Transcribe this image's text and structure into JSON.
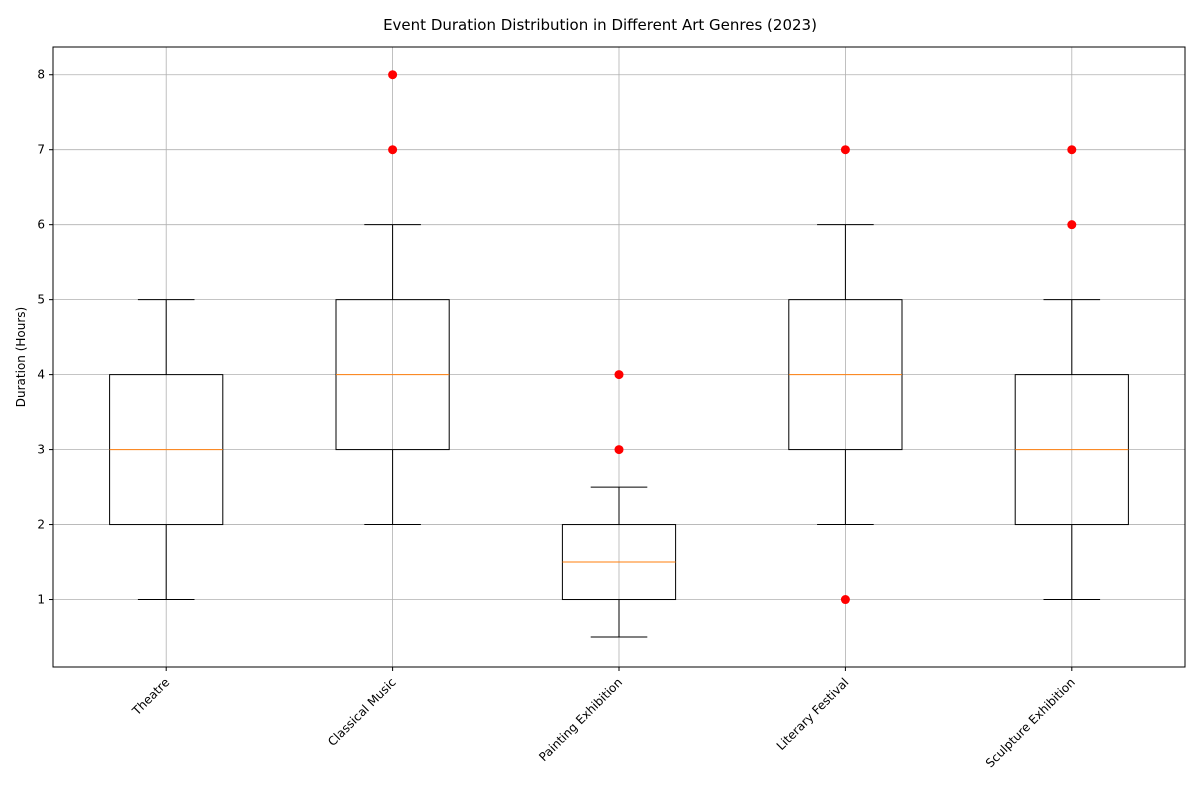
{
  "chart_data": {
    "type": "box",
    "title": "Event Duration Distribution in Different Art Genres (2023)",
    "xlabel": "",
    "ylabel": "Duration (Hours)",
    "ylim": [
      0.1,
      8.37
    ],
    "yticks": [
      1,
      2,
      3,
      4,
      5,
      6,
      7,
      8
    ],
    "grid": true,
    "colors": {
      "box": "#000000",
      "median": "#ff7f0e",
      "outlier": "#ff0000",
      "grid": "#b0b0b0"
    },
    "categories": [
      "Theatre",
      "Classical Music",
      "Painting Exhibition",
      "Literary Festival",
      "Sculpture Exhibition"
    ],
    "boxes": [
      {
        "category": "Theatre",
        "whisker_low": 1,
        "q1": 2,
        "median": 3,
        "q3": 4,
        "whisker_high": 5,
        "outliers": []
      },
      {
        "category": "Classical Music",
        "whisker_low": 2,
        "q1": 3,
        "median": 4,
        "q3": 5,
        "whisker_high": 6,
        "outliers": [
          7,
          8
        ]
      },
      {
        "category": "Painting Exhibition",
        "whisker_low": 0.5,
        "q1": 1,
        "median": 1.5,
        "q3": 2,
        "whisker_high": 2.5,
        "outliers": [
          3,
          4
        ]
      },
      {
        "category": "Literary Festival",
        "whisker_low": 2,
        "q1": 3,
        "median": 4,
        "q3": 5,
        "whisker_high": 6,
        "outliers": [
          1,
          7
        ]
      },
      {
        "category": "Sculpture Exhibition",
        "whisker_low": 1,
        "q1": 2,
        "median": 3,
        "q3": 4,
        "whisker_high": 5,
        "outliers": [
          6,
          7
        ]
      }
    ]
  }
}
